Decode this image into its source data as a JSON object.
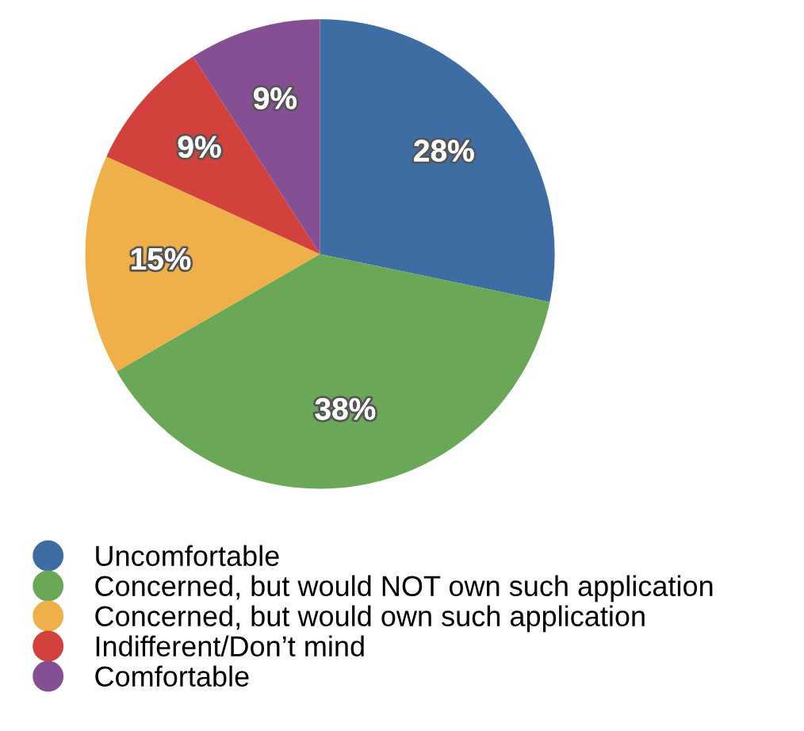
{
  "chart_data": {
    "type": "pie",
    "categories": [
      "Uncomfortable",
      "Concerned, but would NOT own such application",
      "Concerned, but would own such application",
      "Indifferent/Don’t mind",
      "Comfortable"
    ],
    "values": [
      28,
      38,
      15,
      9,
      9
    ],
    "colors": [
      "#3e6da4",
      "#6aa857",
      "#efb049",
      "#d2413c",
      "#844f93"
    ],
    "value_labels": [
      "28%",
      "38%",
      "15%",
      "9%",
      "9%"
    ],
    "legend": "bottom"
  }
}
